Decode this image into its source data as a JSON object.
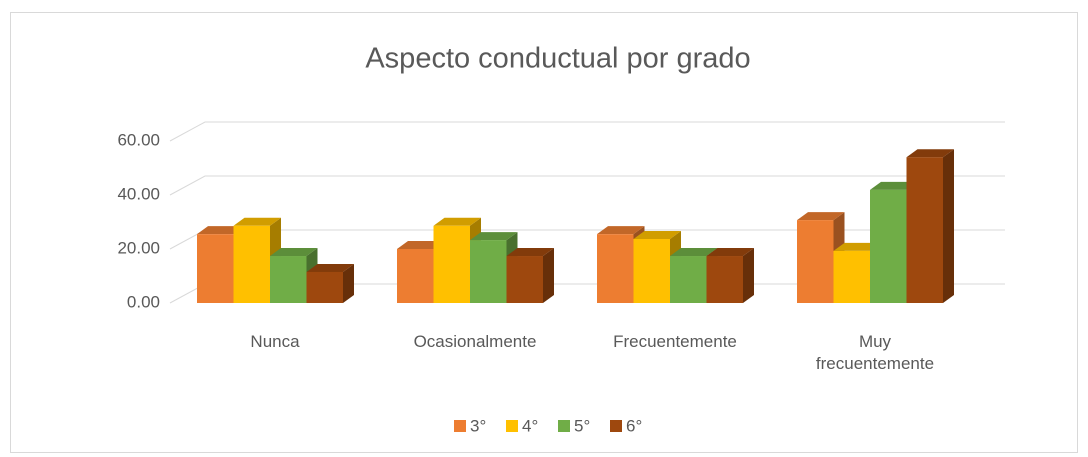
{
  "chart_data": {
    "type": "bar3d",
    "title": "Aspecto conductual por grado",
    "categories": [
      "Nunca",
      "Ocasionalmente",
      "Frecuentemente",
      "Muy frecuentemente"
    ],
    "series": [
      {
        "name": "3°",
        "color": "#ed7d31",
        "values": [
          25.5,
          20,
          25.5,
          30.7
        ]
      },
      {
        "name": "4°",
        "color": "#ffc000",
        "values": [
          28.6,
          28.6,
          23.7,
          19.3
        ]
      },
      {
        "name": "5°",
        "color": "#70ad47",
        "values": [
          17.4,
          23.3,
          17.4,
          41.9
        ]
      },
      {
        "name": "6°",
        "color": "#9e480e",
        "values": [
          11.5,
          17.4,
          17.4,
          54
        ]
      }
    ],
    "ylim": [
      0,
      60
    ],
    "yticks": [
      {
        "value": 0,
        "label": "0.00"
      },
      {
        "value": 20,
        "label": "20.00"
      },
      {
        "value": 40,
        "label": "40.00"
      },
      {
        "value": 60,
        "label": "60.00"
      }
    ],
    "grid": true,
    "legend": "bottom"
  }
}
